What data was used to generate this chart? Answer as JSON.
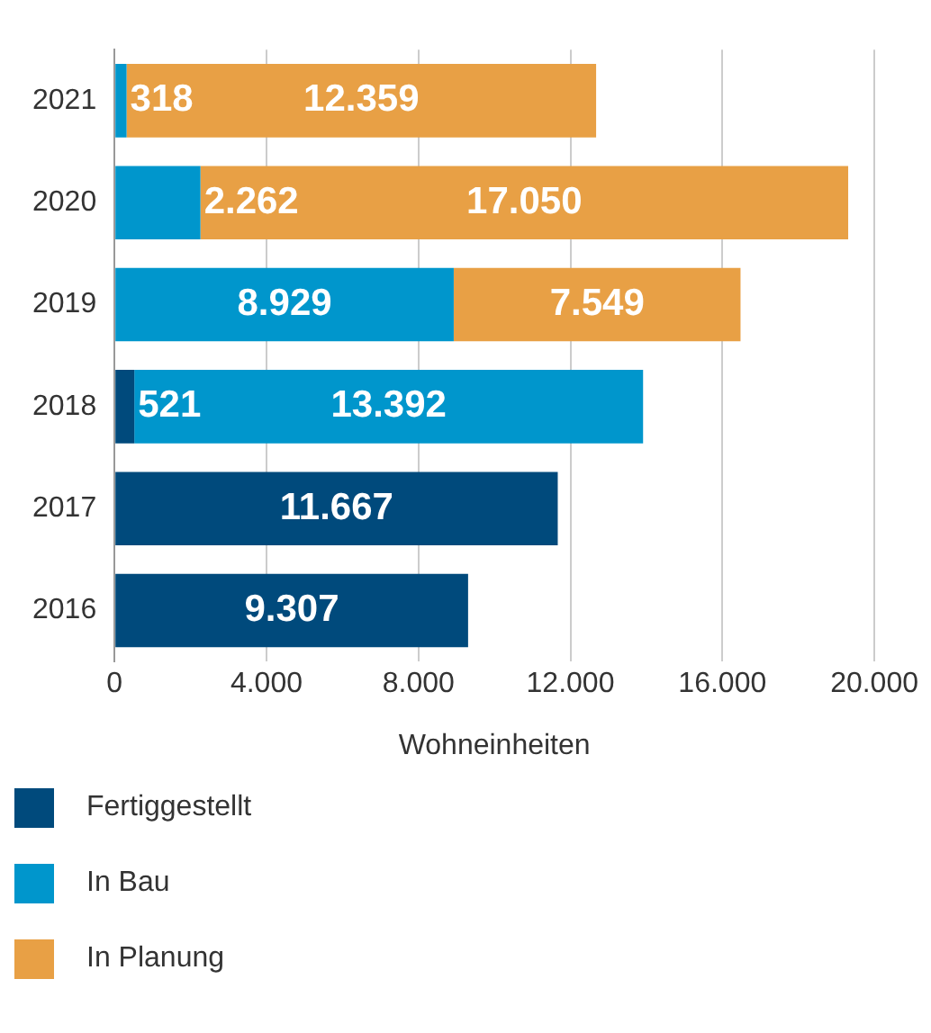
{
  "chart_data": {
    "type": "bar",
    "orientation": "horizontal",
    "stacked": true,
    "xlabel": "Wohneinheiten",
    "categories": [
      "2021",
      "2020",
      "2019",
      "2018",
      "2017",
      "2016"
    ],
    "series": [
      {
        "name": "Fertiggestellt",
        "color": "#004a7c",
        "values": [
          null,
          null,
          null,
          521,
          11667,
          9307
        ],
        "value_labels": [
          null,
          null,
          null,
          "521",
          "11.667",
          "9.307"
        ]
      },
      {
        "name": "In Bau",
        "color": "#0096cc",
        "values": [
          318,
          2262,
          8929,
          13392,
          null,
          null
        ],
        "value_labels": [
          "318",
          "2.262",
          "8.929",
          "13.392",
          null,
          null
        ]
      },
      {
        "name": "In Planung",
        "color": "#e8a045",
        "values": [
          12359,
          17050,
          7549,
          null,
          null,
          null
        ],
        "value_labels": [
          "12.359",
          "17.050",
          "7.549",
          null,
          null,
          null
        ]
      }
    ],
    "xlim": [
      0,
      20000
    ],
    "xticks": [
      {
        "value": 0,
        "label": "0"
      },
      {
        "value": 4000,
        "label": "4.000"
      },
      {
        "value": 8000,
        "label": "8.000"
      },
      {
        "value": 12000,
        "label": "12.000"
      },
      {
        "value": 16000,
        "label": "16.000"
      },
      {
        "value": 20000,
        "label": "20.000"
      }
    ],
    "grid": "x",
    "legend": "bottom"
  }
}
